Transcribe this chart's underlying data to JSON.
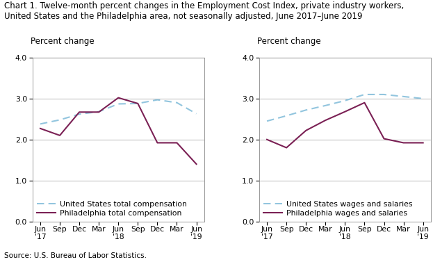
{
  "title_line1": "Chart 1. Twelve-month percent changes in the Employment Cost Index, private industry workers,",
  "title_line2": "United States and the Philadelphia area, not seasonally adjusted, June 2017–June 2019",
  "title_fontsize": 8.5,
  "ylabel": "Percent change",
  "ylabel_fontsize": 8.5,
  "source": "Source: U.S. Bureau of Labor Statistics.",
  "x_labels": [
    "Jun\n'17",
    "Sep",
    "Dec",
    "Mar",
    "Jun\n'18",
    "Sep",
    "Dec",
    "Mar",
    "Jun\n'19"
  ],
  "ylim": [
    0.0,
    4.0
  ],
  "yticks": [
    0.0,
    1.0,
    2.0,
    3.0,
    4.0
  ],
  "ytick_labels": [
    "0.0",
    "1.0",
    "2.0",
    "3.0",
    "4.0"
  ],
  "left_chart": {
    "us_total_comp": [
      2.38,
      2.48,
      2.62,
      2.68,
      2.87,
      2.88,
      2.97,
      2.9,
      2.63
    ],
    "phi_total_comp": [
      2.27,
      2.1,
      2.67,
      2.67,
      3.02,
      2.88,
      1.92,
      1.92,
      1.4
    ],
    "us_label": "United States total compensation",
    "phi_label": "Philadelphia total compensation"
  },
  "right_chart": {
    "us_wages": [
      2.45,
      2.58,
      2.72,
      2.83,
      2.95,
      3.1,
      3.1,
      3.05,
      3.0
    ],
    "phi_wages": [
      2.0,
      1.8,
      2.22,
      2.47,
      2.68,
      2.9,
      2.02,
      1.92,
      1.92
    ],
    "us_label": "United States wages and salaries",
    "phi_label": "Philadelphia wages and salaries"
  },
  "us_color": "#92C5DE",
  "phi_color": "#7B2155",
  "us_linewidth": 1.5,
  "phi_linewidth": 1.5,
  "legend_fontsize": 7.8,
  "tick_fontsize": 7.8,
  "grid_color": "#aaaaaa",
  "bg_color": "#ffffff",
  "plot_bg_color": "#ffffff"
}
